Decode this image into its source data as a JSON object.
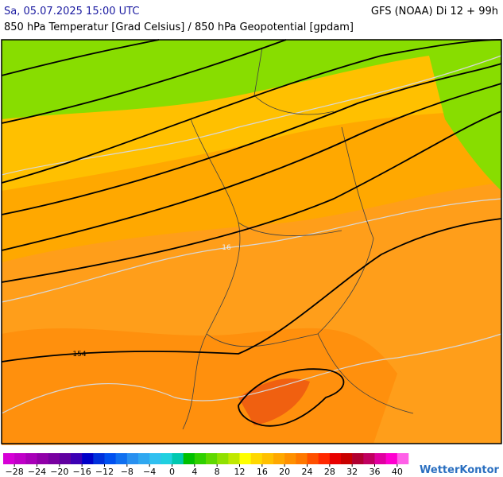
{
  "header": {
    "datetime": "Sa, 05.07.2025 15:00 UTC",
    "model": "GFS (NOAA) Di 12 + 99h",
    "title": "850 hPa Temperatur [Grad Celsius] / 850 hPa Geopotential [gpdam]"
  },
  "map": {
    "isotherm_label": "16",
    "geopotential_label": "154"
  },
  "colorbar": {
    "range": [
      -30,
      42
    ],
    "colors": [
      "#d600d6",
      "#c000c8",
      "#a800b8",
      "#9000a8",
      "#7800a0",
      "#6000a0",
      "#3c00b4",
      "#0000c8",
      "#0030dc",
      "#0050f0",
      "#1070f0",
      "#2890f0",
      "#30a8f0",
      "#30c0f0",
      "#20d0e0",
      "#00c8b0",
      "#00c000",
      "#30d000",
      "#60d800",
      "#90e000",
      "#c0e800",
      "#ffff00",
      "#ffd800",
      "#ffc000",
      "#ffa800",
      "#ff9000",
      "#ff7800",
      "#ff5000",
      "#ff2800",
      "#e80000",
      "#c80000",
      "#b00030",
      "#c00060",
      "#e000a0",
      "#ff00d0",
      "#ff60e8"
    ],
    "ticks": [
      {
        "value": -28,
        "label": "−28"
      },
      {
        "value": -24,
        "label": "−24"
      },
      {
        "value": -20,
        "label": "−20"
      },
      {
        "value": -16,
        "label": "−16"
      },
      {
        "value": -12,
        "label": "−12"
      },
      {
        "value": -8,
        "label": "−8"
      },
      {
        "value": -4,
        "label": "−4"
      },
      0,
      4,
      8,
      12,
      16,
      20,
      24,
      28,
      32,
      36,
      40
    ]
  },
  "brand": "WetterKontor"
}
